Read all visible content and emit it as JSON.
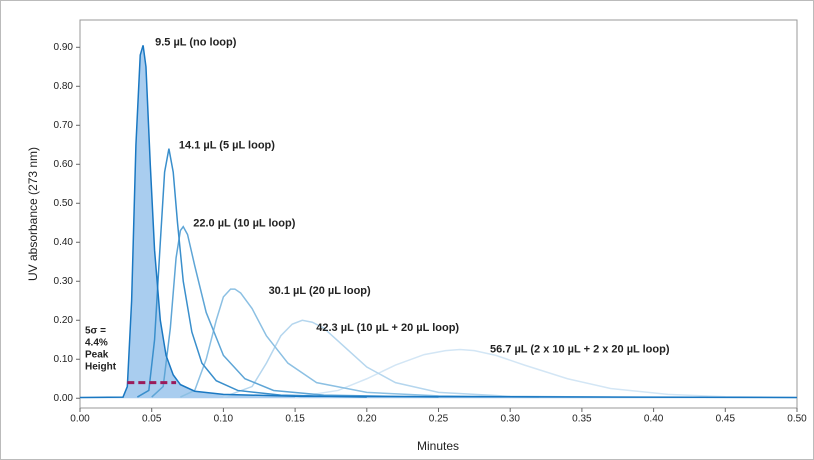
{
  "chart_data": {
    "type": "line",
    "x_label": "Minutes",
    "y_label": "UV absorbance (273 nm)",
    "xlim": [
      0,
      0.5
    ],
    "ylim": [
      -0.025,
      0.97
    ],
    "xticks": [
      {
        "value": 0,
        "label": "0.00"
      },
      {
        "value": 0.05,
        "label": "0.05"
      },
      {
        "value": 0.1,
        "label": "0.10"
      },
      {
        "value": 0.15,
        "label": "0.15"
      },
      {
        "value": 0.2,
        "label": "0.20"
      },
      {
        "value": 0.25,
        "label": "0.25"
      },
      {
        "value": 0.3,
        "label": "0.30"
      },
      {
        "value": 0.35,
        "label": "0.35"
      },
      {
        "value": 0.4,
        "label": "0.40"
      },
      {
        "value": 0.45,
        "label": "0.45"
      },
      {
        "value": 0.5,
        "label": "0.50"
      }
    ],
    "yticks": [
      {
        "value": 0,
        "label": "0.00"
      },
      {
        "value": 0.1,
        "label": "0.10"
      },
      {
        "value": 0.2,
        "label": "0.20"
      },
      {
        "value": 0.3,
        "label": "0.30"
      },
      {
        "value": 0.4,
        "label": "0.40"
      },
      {
        "value": 0.5,
        "label": "0.50"
      },
      {
        "value": 0.6,
        "label": "0.60"
      },
      {
        "value": 0.7,
        "label": "0.70"
      },
      {
        "value": 0.8,
        "label": "0.80"
      },
      {
        "value": 0.9,
        "label": "0.90"
      }
    ],
    "series": [
      {
        "name": "9.5 µL (no loop)",
        "color": "#1a78c2",
        "fill": "#a9cdef",
        "x": [
          0,
          0.03,
          0.033,
          0.036,
          0.039,
          0.042,
          0.044,
          0.046,
          0.049,
          0.052,
          0.056,
          0.06,
          0.065,
          0.07,
          0.08,
          0.1,
          0.15,
          0.5
        ],
        "values": [
          0.002,
          0.003,
          0.03,
          0.25,
          0.65,
          0.88,
          0.905,
          0.85,
          0.6,
          0.38,
          0.2,
          0.11,
          0.06,
          0.035,
          0.018,
          0.01,
          0.005,
          0.002
        ]
      },
      {
        "name": "14.1 µL (5 µL loop)",
        "color": "#3a8fcc",
        "x": [
          0.04,
          0.048,
          0.052,
          0.056,
          0.059,
          0.062,
          0.065,
          0.068,
          0.072,
          0.078,
          0.085,
          0.095,
          0.11,
          0.14,
          0.2
        ],
        "values": [
          0.003,
          0.02,
          0.15,
          0.4,
          0.58,
          0.64,
          0.58,
          0.45,
          0.3,
          0.17,
          0.09,
          0.045,
          0.02,
          0.008,
          0.003
        ]
      },
      {
        "name": "22.0 µL (10 µL loop)",
        "color": "#5ea5d6",
        "x": [
          0.05,
          0.058,
          0.063,
          0.067,
          0.07,
          0.072,
          0.075,
          0.08,
          0.088,
          0.1,
          0.115,
          0.135,
          0.17,
          0.25
        ],
        "values": [
          0.003,
          0.03,
          0.18,
          0.36,
          0.43,
          0.44,
          0.42,
          0.34,
          0.22,
          0.11,
          0.05,
          0.02,
          0.008,
          0.003
        ]
      },
      {
        "name": "30.1 µL (20 µL loop)",
        "color": "#8cc0e3",
        "x": [
          0.07,
          0.08,
          0.088,
          0.095,
          0.1,
          0.105,
          0.108,
          0.112,
          0.12,
          0.13,
          0.145,
          0.165,
          0.2,
          0.25,
          0.32
        ],
        "values": [
          0.003,
          0.02,
          0.1,
          0.2,
          0.26,
          0.28,
          0.28,
          0.27,
          0.23,
          0.16,
          0.09,
          0.04,
          0.015,
          0.006,
          0.003
        ]
      },
      {
        "name": "42.3 µL (10 µL + 20 µL loop)",
        "color": "#b5d6ee",
        "x": [
          0.1,
          0.12,
          0.13,
          0.14,
          0.148,
          0.155,
          0.162,
          0.17,
          0.185,
          0.2,
          0.22,
          0.25,
          0.3,
          0.37
        ],
        "values": [
          0.003,
          0.03,
          0.09,
          0.16,
          0.19,
          0.2,
          0.195,
          0.18,
          0.13,
          0.08,
          0.04,
          0.015,
          0.005,
          0.003
        ]
      },
      {
        "name": "56.7 µL (2 x 10 µL + 2 x 20 µL loop)",
        "color": "#d3e6f5",
        "x": [
          0.15,
          0.18,
          0.2,
          0.22,
          0.24,
          0.255,
          0.265,
          0.275,
          0.29,
          0.31,
          0.34,
          0.37,
          0.41,
          0.45,
          0.5
        ],
        "values": [
          0.003,
          0.02,
          0.05,
          0.085,
          0.112,
          0.122,
          0.125,
          0.122,
          0.11,
          0.085,
          0.05,
          0.025,
          0.01,
          0.004,
          0.002
        ]
      }
    ],
    "threshold": {
      "text": [
        "5σ =",
        "4.4%",
        "Peak",
        "Height"
      ],
      "color": "#9b1b5a",
      "y": 0.04,
      "x": [
        0.033,
        0.067
      ]
    }
  }
}
